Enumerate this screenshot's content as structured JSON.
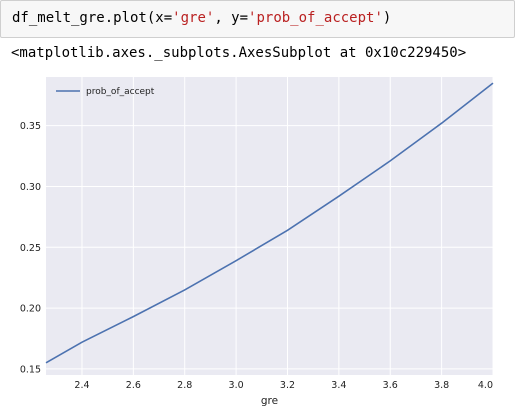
{
  "cell": {
    "code_prefix": "df_melt_gre.plot(x=",
    "code_arg1": "'gre'",
    "code_mid": ", y=",
    "code_arg2": "'prob_of_accept'",
    "code_suffix": ")"
  },
  "output": {
    "text": "<matplotlib.axes._subplots.AxesSubplot at 0x10c229450>"
  },
  "colors": {
    "plot_bg": "#eaeaf2",
    "grid": "#ffffff",
    "line": "#4c72b0",
    "string_literal": "#ba2121"
  },
  "chart_data": {
    "type": "line",
    "xlabel": "gre",
    "ylabel": "",
    "legend_placement": "top-left",
    "grid": true,
    "xlim": [
      2.26,
      4.0
    ],
    "ylim": [
      0.145,
      0.39
    ],
    "xticks": [
      "2.4",
      "2.6",
      "2.8",
      "3.0",
      "3.2",
      "3.4",
      "3.6",
      "3.8",
      "4.0"
    ],
    "yticks": [
      "0.15",
      "0.20",
      "0.25",
      "0.30",
      "0.35"
    ],
    "series": [
      {
        "name": "prob_of_accept",
        "x": [
          2.26,
          2.4,
          2.6,
          2.8,
          3.0,
          3.2,
          3.4,
          3.6,
          3.8,
          4.0
        ],
        "y": [
          0.155,
          0.172,
          0.193,
          0.215,
          0.239,
          0.264,
          0.292,
          0.321,
          0.352,
          0.385
        ]
      }
    ]
  }
}
